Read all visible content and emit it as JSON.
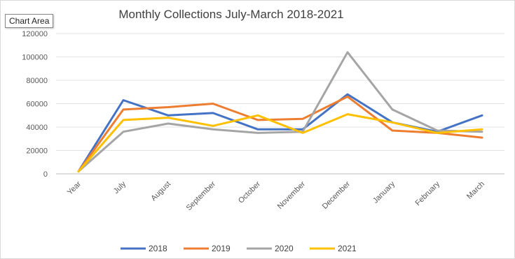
{
  "tooltip": "Chart Area",
  "chart_data": {
    "type": "line",
    "title": "Monthly Collections  July-March 2018-2021",
    "categories": [
      "Year",
      "July",
      "August",
      "September",
      "October",
      "November",
      "December",
      "January",
      "February",
      "March"
    ],
    "ylim": [
      0,
      120000
    ],
    "yticks": [
      0,
      20000,
      40000,
      60000,
      80000,
      100000,
      120000
    ],
    "grid": true,
    "legend": "bottom",
    "series": [
      {
        "name": "2018",
        "color": "#4472c4",
        "values": [
          2018,
          63000,
          50000,
          52000,
          38000,
          38000,
          68000,
          44000,
          36000,
          50000
        ]
      },
      {
        "name": "2019",
        "color": "#ed7d31",
        "values": [
          2019,
          55000,
          57000,
          60000,
          46000,
          47000,
          66000,
          37000,
          35000,
          31000
        ]
      },
      {
        "name": "2020",
        "color": "#a5a5a5",
        "values": [
          2020,
          36000,
          43000,
          38000,
          35000,
          36000,
          104000,
          55000,
          37000,
          36000
        ]
      },
      {
        "name": "2021",
        "color": "#ffc000",
        "values": [
          2021,
          46000,
          48000,
          41000,
          50000,
          35000,
          51000,
          44000,
          35000,
          38000
        ]
      }
    ]
  }
}
